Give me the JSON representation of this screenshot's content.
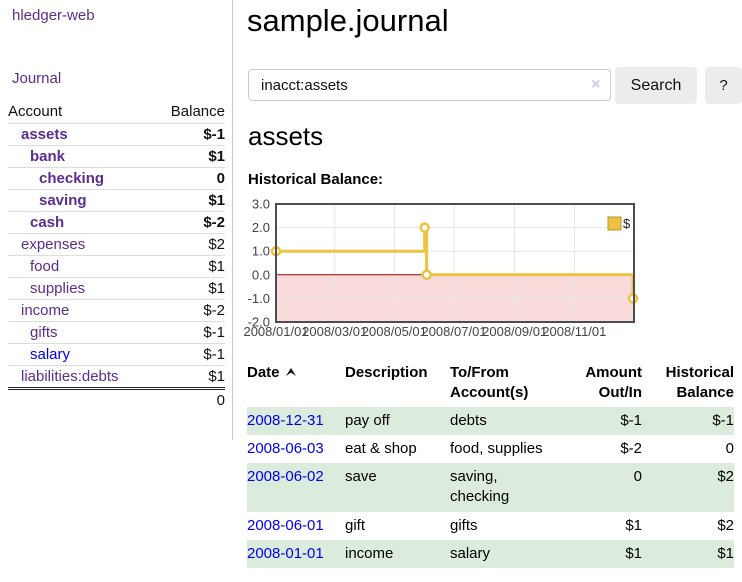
{
  "app": {
    "brand": "hledger-web"
  },
  "sidebar": {
    "journal_link": "Journal",
    "accounts_table": {
      "account_header": "Account",
      "balance_header": "Balance",
      "rows": [
        {
          "name": "assets",
          "balance": "$-1",
          "depth": 1,
          "bold": true,
          "negative": "strong"
        },
        {
          "name": "bank",
          "balance": "$1",
          "depth": 2,
          "bold": true,
          "negative": "none"
        },
        {
          "name": "checking",
          "balance": "0",
          "depth": 3,
          "bold": true,
          "negative": "none"
        },
        {
          "name": "saving",
          "balance": "$1",
          "depth": 3,
          "bold": true,
          "negative": "none"
        },
        {
          "name": "cash",
          "balance": "$-2",
          "depth": 2,
          "bold": true,
          "negative": "strong"
        },
        {
          "name": "expenses",
          "balance": "$2",
          "depth": 1,
          "bold": false,
          "negative": "none"
        },
        {
          "name": "food",
          "balance": "$1",
          "depth": 2,
          "bold": false,
          "negative": "none"
        },
        {
          "name": "supplies",
          "balance": "$1",
          "depth": 2,
          "bold": false,
          "negative": "none"
        },
        {
          "name": "income",
          "balance": "$-2",
          "depth": 1,
          "bold": false,
          "negative": "soft"
        },
        {
          "name": "gifts",
          "balance": "$-1",
          "depth": 2,
          "bold": false,
          "negative": "soft"
        },
        {
          "name": "salary",
          "balance": "$-1",
          "depth": 2,
          "bold": false,
          "negative": "soft",
          "link_variant": "blue"
        },
        {
          "name": "liabilities:debts",
          "balance": "$1",
          "depth": 1,
          "bold": false,
          "negative": "none"
        }
      ],
      "total": "0"
    }
  },
  "header": {
    "title": "sample.journal"
  },
  "search": {
    "value": "inacct:assets",
    "clear": "×",
    "button_label": "Search",
    "help_label": "?"
  },
  "account_view": {
    "heading": "assets",
    "chart_title": "Historical Balance:"
  },
  "chart_data": {
    "type": "line",
    "step": true,
    "title": "Historical Balance:",
    "series": [
      {
        "name": "$",
        "color": "#edc240",
        "points": [
          {
            "date": "2008-01-01",
            "day": 0,
            "value": 1
          },
          {
            "date": "2008-06-01",
            "day": 152,
            "value": 2
          },
          {
            "date": "2008-06-03",
            "day": 154,
            "value": 0
          },
          {
            "date": "2008-12-31",
            "day": 365,
            "value": -1
          }
        ]
      }
    ],
    "x_ticks": [
      {
        "label": "2008/01/01",
        "day": 0
      },
      {
        "label": "2008/03/01",
        "day": 60
      },
      {
        "label": "2008/05/01",
        "day": 121
      },
      {
        "label": "2008/07/01",
        "day": 182
      },
      {
        "label": "2008/09/01",
        "day": 244
      },
      {
        "label": "2008/11/01",
        "day": 305
      }
    ],
    "x_domain_days": [
      0,
      366
    ],
    "y_ticks": [
      3.0,
      2.0,
      1.0,
      0.0,
      -1.0,
      -2.0
    ],
    "ylim": [
      -2,
      3
    ],
    "legend": {
      "label": "$",
      "position": "top-right"
    },
    "grid": true,
    "colors": {
      "line": "#edc240",
      "marker_fill": "#ffffff",
      "legend_box_border": "#b7952f",
      "negative_region": "#f9dbdb",
      "zero_line": "#a40000",
      "grid": "#e6e6e6",
      "border": "#4d4d4d",
      "tick_text": "#444444"
    }
  },
  "register": {
    "headers": {
      "date": "Date",
      "sort": "asc",
      "description": "Description",
      "tofrom_line1": "To/From",
      "tofrom_line2": "Account(s)",
      "amount_line1": "Amount",
      "amount_line2": "Out/In",
      "balance_line1": "Historical",
      "balance_line2": "Balance"
    },
    "rows": [
      {
        "date": "2008-12-31",
        "description": "pay off",
        "accounts": "debts",
        "amount": "$-1",
        "balance": "$-1"
      },
      {
        "date": "2008-06-03",
        "description": "eat & shop",
        "accounts": "food, supplies",
        "amount": "$-2",
        "balance": "0"
      },
      {
        "date": "2008-06-02",
        "description": "save",
        "accounts": "saving, checking",
        "amount": "0",
        "balance": "$2"
      },
      {
        "date": "2008-06-01",
        "description": "gift",
        "accounts": "gifts",
        "amount": "$1",
        "balance": "$2"
      },
      {
        "date": "2008-01-01",
        "description": "income",
        "accounts": "salary",
        "amount": "$1",
        "balance": "$1"
      }
    ]
  }
}
